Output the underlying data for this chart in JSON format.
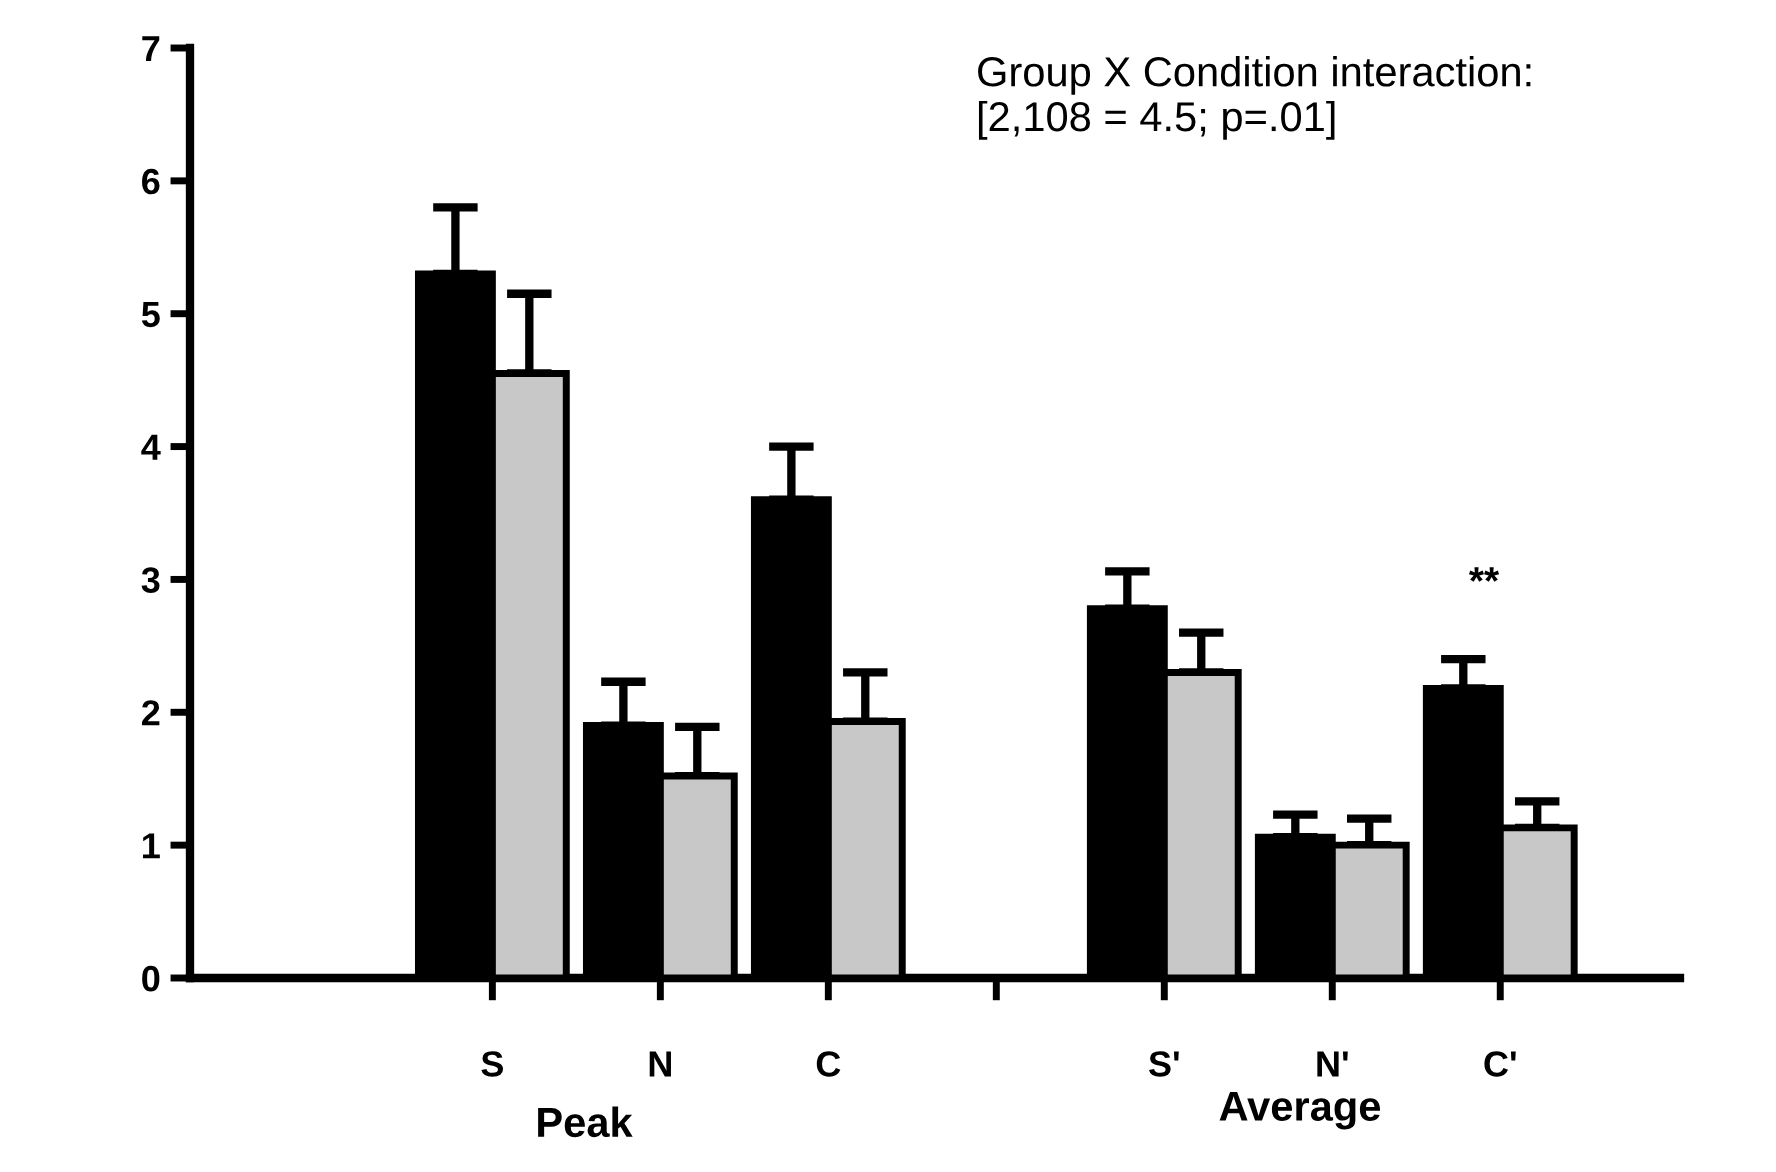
{
  "chart_data": {
    "type": "bar",
    "categories": [
      "S",
      "N",
      "C",
      null,
      "S'",
      "N'",
      "C'"
    ],
    "series": [
      {
        "color": "#000000",
        "values": [
          5.3,
          1.9,
          3.6,
          null,
          2.78,
          1.06,
          2.18
        ],
        "errors": [
          0.5,
          0.33,
          0.4,
          null,
          0.28,
          0.17,
          0.22
        ]
      },
      {
        "color": "#c8c8c8",
        "values": [
          4.55,
          1.52,
          1.93,
          null,
          2.3,
          1.0,
          1.13
        ],
        "errors": [
          0.6,
          0.37,
          0.37,
          null,
          0.3,
          0.2,
          0.2
        ]
      }
    ],
    "ylim": [
      0,
      7
    ],
    "yticks": [
      0,
      1,
      2,
      3,
      4,
      5,
      6,
      7
    ],
    "annotations": [
      "Group X Condition interaction:\n[2,108 = 4.5; p=.01]",
      "Peak",
      "Average",
      "**"
    ],
    "grid": false,
    "legend": false
  }
}
